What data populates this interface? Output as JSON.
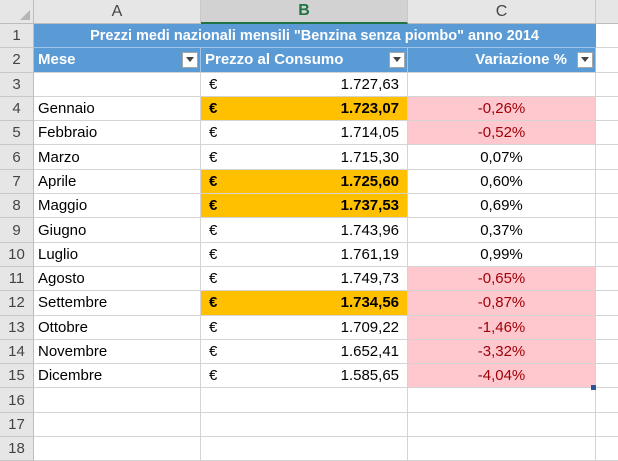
{
  "columns": [
    "A",
    "B",
    "C"
  ],
  "selected_column": "B",
  "title": "Prezzi medi nazionali mensili \"Benzina senza piombo\" anno 2014",
  "headers": {
    "mese": "Mese",
    "prezzo": "Prezzo al Consumo",
    "variazione": "Variazione %"
  },
  "currency_symbol": "€",
  "data_rows": [
    {
      "row": "3",
      "mese": "",
      "prezzo": "1.727,63",
      "variazione": "",
      "highlight": false,
      "negative": false
    },
    {
      "row": "4",
      "mese": "Gennaio",
      "prezzo": "1.723,07",
      "variazione": "-0,26%",
      "highlight": true,
      "negative": true
    },
    {
      "row": "5",
      "mese": "Febbraio",
      "prezzo": "1.714,05",
      "variazione": "-0,52%",
      "highlight": false,
      "negative": true
    },
    {
      "row": "6",
      "mese": "Marzo",
      "prezzo": "1.715,30",
      "variazione": "0,07%",
      "highlight": false,
      "negative": false
    },
    {
      "row": "7",
      "mese": "Aprile",
      "prezzo": "1.725,60",
      "variazione": "0,60%",
      "highlight": true,
      "negative": false
    },
    {
      "row": "8",
      "mese": "Maggio",
      "prezzo": "1.737,53",
      "variazione": "0,69%",
      "highlight": true,
      "negative": false
    },
    {
      "row": "9",
      "mese": "Giugno",
      "prezzo": "1.743,96",
      "variazione": "0,37%",
      "highlight": false,
      "negative": false
    },
    {
      "row": "10",
      "mese": "Luglio",
      "prezzo": "1.761,19",
      "variazione": "0,99%",
      "highlight": false,
      "negative": false
    },
    {
      "row": "11",
      "mese": "Agosto",
      "prezzo": "1.749,73",
      "variazione": "-0,65%",
      "highlight": false,
      "negative": true
    },
    {
      "row": "12",
      "mese": "Settembre",
      "prezzo": "1.734,56",
      "variazione": "-0,87%",
      "highlight": true,
      "negative": true
    },
    {
      "row": "13",
      "mese": "Ottobre",
      "prezzo": "1.709,22",
      "variazione": "-1,46%",
      "highlight": false,
      "negative": true
    },
    {
      "row": "14",
      "mese": "Novembre",
      "prezzo": "1.652,41",
      "variazione": "-3,32%",
      "highlight": false,
      "negative": true
    },
    {
      "row": "15",
      "mese": "Dicembre",
      "prezzo": "1.585,65",
      "variazione": "-4,04%",
      "highlight": false,
      "negative": true
    }
  ],
  "empty_rows": [
    "16",
    "17",
    "18"
  ],
  "colors": {
    "header_blue": "#5b9bd5",
    "highlight_orange": "#ffc000",
    "negative_fill": "#ffc7ce",
    "negative_text": "#9c0006",
    "selected_col": "#217346"
  }
}
